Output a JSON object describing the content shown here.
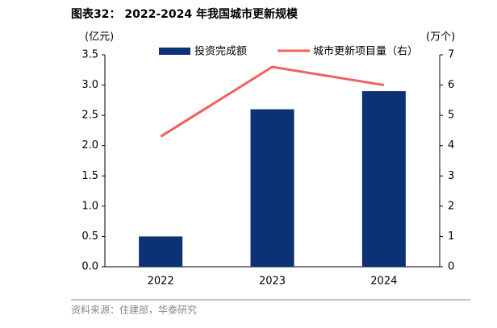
{
  "chart_data": {
    "type": "combo",
    "title": "图表32： 2022-2024 年我国城市更新规模",
    "y_label": "(亿元)",
    "y2_label": "(万个)",
    "categories": [
      "2022",
      "2023",
      "2024"
    ],
    "series": [
      {
        "name": "投资完成额",
        "type": "bar",
        "color": "#0c3175",
        "values": [
          0.5,
          2.6,
          2.9
        ]
      },
      {
        "name": "城市更新项目量（右）",
        "type": "line",
        "axis": "y2",
        "color": "#f0605d",
        "values": [
          4.3,
          6.6,
          6.0
        ]
      }
    ],
    "ylim": [
      0,
      3.5
    ],
    "yticks": [
      {
        "value": 0,
        "label": "0.0"
      },
      0.5,
      {
        "value": 1,
        "label": "1.0"
      },
      1.5,
      {
        "value": 2,
        "label": "2.0"
      },
      2.5,
      {
        "value": 3,
        "label": "3.0"
      },
      3.5
    ],
    "y2lim": [
      0,
      7
    ],
    "y2ticks": [
      0,
      1,
      2,
      3,
      4,
      5,
      6,
      7
    ],
    "legend": "top",
    "source": "资料来源：住建部，华泰研究"
  }
}
